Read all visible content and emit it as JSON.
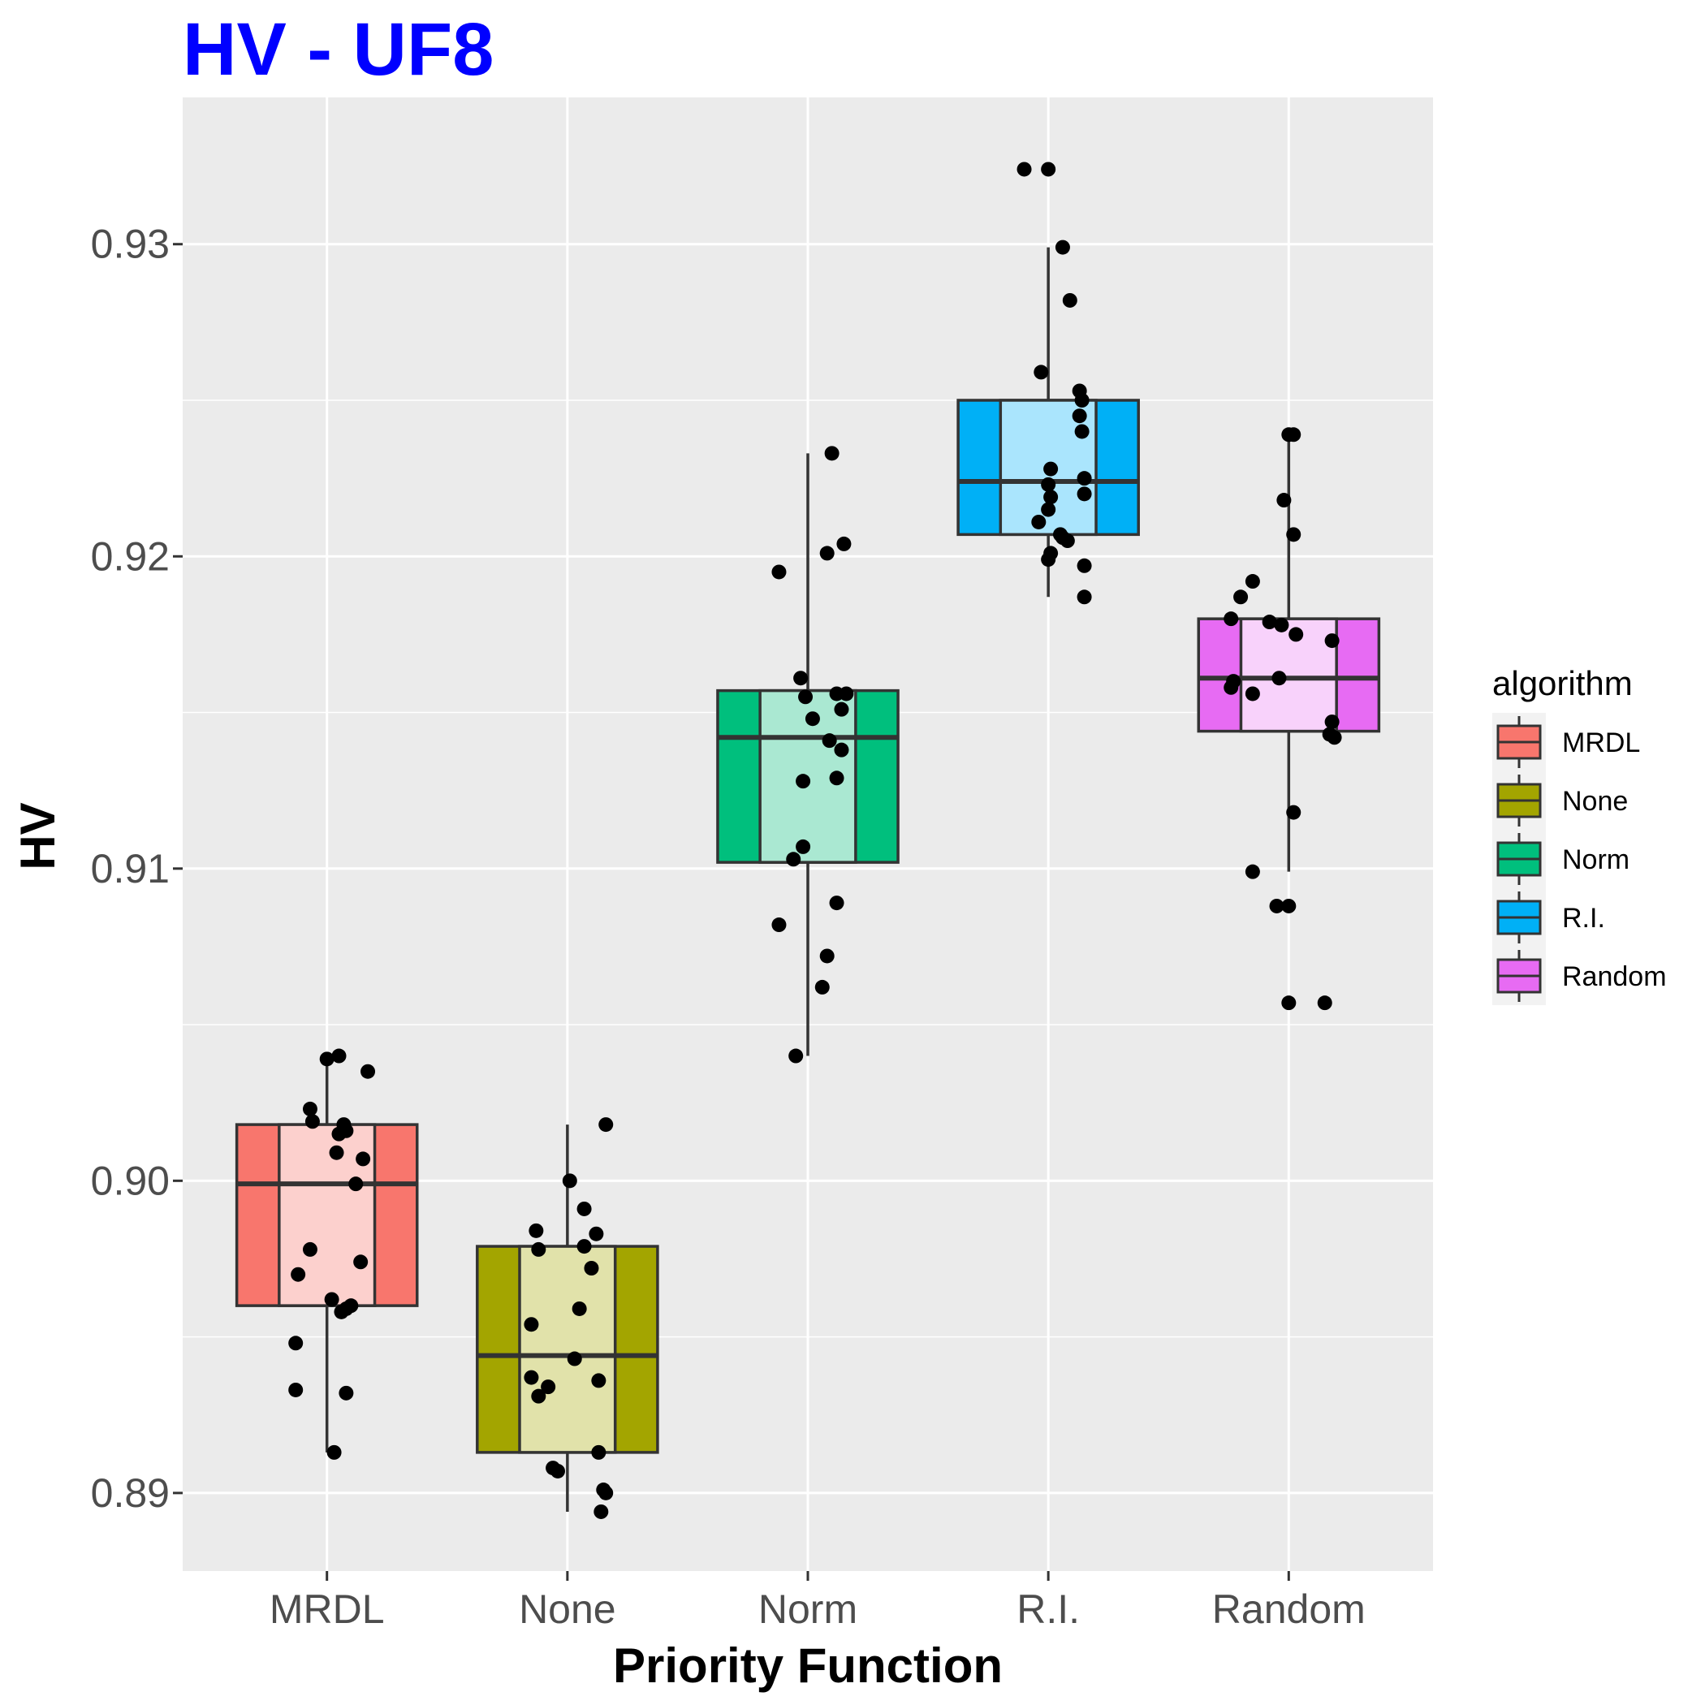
{
  "chart_data": {
    "type": "boxplot",
    "title": "HV - UF8",
    "title_color": "#0000ff",
    "xlabel": "Priority Function",
    "ylabel": "HV",
    "ylim": [
      0.8875,
      0.9347
    ],
    "yticks": [
      0.89,
      0.9,
      0.91,
      0.92,
      0.93
    ],
    "ytick_labels": [
      "0.89",
      "0.90",
      "0.91",
      "0.92",
      "0.93"
    ],
    "grid": true,
    "panel_background": "#ebebeb",
    "categories": [
      "MRDL",
      "None",
      "Norm",
      "R.I.",
      "Random"
    ],
    "legend": {
      "title": "algorithm",
      "position": "right",
      "entries": [
        "MRDL",
        "None",
        "Norm",
        "R.I.",
        "Random"
      ]
    },
    "series": [
      {
        "name": "MRDL",
        "color": "#f8766d",
        "light_color": "#fcd0cd",
        "box": {
          "whisker_low": 0.8913,
          "q1": 0.896,
          "median": 0.8999,
          "q3": 0.9018,
          "whisker_high": 0.904
        },
        "points": [
          [
            0.0,
            0.9039
          ],
          [
            0.05,
            0.904
          ],
          [
            0.17,
            0.9035
          ],
          [
            -0.07,
            0.9023
          ],
          [
            -0.06,
            0.9019
          ],
          [
            0.07,
            0.9018
          ],
          [
            0.05,
            0.9015
          ],
          [
            0.08,
            0.9016
          ],
          [
            0.04,
            0.9009
          ],
          [
            0.15,
            0.9007
          ],
          [
            0.12,
            0.8999
          ],
          [
            -0.07,
            0.8978
          ],
          [
            0.14,
            0.8974
          ],
          [
            -0.12,
            0.897
          ],
          [
            0.02,
            0.8962
          ],
          [
            0.08,
            0.8959
          ],
          [
            0.1,
            0.896
          ],
          [
            0.06,
            0.8958
          ],
          [
            -0.13,
            0.8948
          ],
          [
            -0.13,
            0.8933
          ],
          [
            0.08,
            0.8932
          ],
          [
            0.03,
            0.8913
          ]
        ]
      },
      {
        "name": "None",
        "color": "#a3a500",
        "light_color": "#e1e2aa",
        "box": {
          "whisker_low": 0.8894,
          "q1": 0.8913,
          "median": 0.8944,
          "q3": 0.8979,
          "whisker_high": 0.9018
        },
        "points": [
          [
            0.16,
            0.9018
          ],
          [
            0.01,
            0.9
          ],
          [
            0.07,
            0.8991
          ],
          [
            -0.13,
            0.8984
          ],
          [
            0.12,
            0.8983
          ],
          [
            0.07,
            0.8979
          ],
          [
            -0.12,
            0.8978
          ],
          [
            0.1,
            0.8972
          ],
          [
            0.05,
            0.8959
          ],
          [
            -0.15,
            0.8954
          ],
          [
            0.03,
            0.8943
          ],
          [
            -0.15,
            0.8937
          ],
          [
            0.13,
            0.8936
          ],
          [
            -0.08,
            0.8934
          ],
          [
            -0.12,
            0.8931
          ],
          [
            0.13,
            0.8913
          ],
          [
            -0.06,
            0.8908
          ],
          [
            -0.04,
            0.8907
          ],
          [
            0.15,
            0.8901
          ],
          [
            0.16,
            0.89
          ],
          [
            0.14,
            0.8894
          ]
        ]
      },
      {
        "name": "Norm",
        "color": "#00bf7d",
        "light_color": "#aae8d2",
        "box": {
          "whisker_low": 0.904,
          "q1": 0.9102,
          "median": 0.9142,
          "q3": 0.9157,
          "whisker_high": 0.9233
        },
        "points": [
          [
            0.1,
            0.9233
          ],
          [
            0.15,
            0.9204
          ],
          [
            0.08,
            0.9201
          ],
          [
            -0.12,
            0.9195
          ],
          [
            -0.03,
            0.9161
          ],
          [
            0.12,
            0.9156
          ],
          [
            0.16,
            0.9156
          ],
          [
            -0.01,
            0.9155
          ],
          [
            0.14,
            0.9151
          ],
          [
            0.02,
            0.9148
          ],
          [
            0.09,
            0.9141
          ],
          [
            0.14,
            0.9138
          ],
          [
            -0.02,
            0.9128
          ],
          [
            0.12,
            0.9129
          ],
          [
            -0.02,
            0.9107
          ],
          [
            -0.06,
            0.9103
          ],
          [
            0.12,
            0.9089
          ],
          [
            -0.12,
            0.9082
          ],
          [
            0.08,
            0.9072
          ],
          [
            0.06,
            0.9062
          ],
          [
            -0.05,
            0.904
          ]
        ]
      },
      {
        "name": "R.I.",
        "color": "#00b0f6",
        "light_color": "#aae5fd",
        "box": {
          "whisker_low": 0.9187,
          "q1": 0.9207,
          "median": 0.9224,
          "q3": 0.925,
          "whisker_high": 0.9299
        },
        "points": [
          [
            -0.1,
            0.9324
          ],
          [
            0.0,
            0.9324
          ],
          [
            0.06,
            0.9299
          ],
          [
            0.09,
            0.9282
          ],
          [
            -0.03,
            0.9259
          ],
          [
            0.13,
            0.9253
          ],
          [
            0.14,
            0.925
          ],
          [
            0.13,
            0.9245
          ],
          [
            0.14,
            0.924
          ],
          [
            0.01,
            0.9228
          ],
          [
            0.15,
            0.9225
          ],
          [
            0.0,
            0.9223
          ],
          [
            0.01,
            0.9219
          ],
          [
            0.15,
            0.922
          ],
          [
            0.0,
            0.9215
          ],
          [
            -0.04,
            0.9211
          ],
          [
            0.05,
            0.9207
          ],
          [
            0.08,
            0.9205
          ],
          [
            0.06,
            0.9206
          ],
          [
            0.01,
            0.9201
          ],
          [
            0.0,
            0.9199
          ],
          [
            0.15,
            0.9197
          ],
          [
            0.15,
            0.9187
          ]
        ]
      },
      {
        "name": "Random",
        "color": "#e76bf3",
        "light_color": "#f8d2fb",
        "box": {
          "whisker_low": 0.9099,
          "q1": 0.9144,
          "median": 0.9161,
          "q3": 0.918,
          "whisker_high": 0.9239
        },
        "points": [
          [
            0.0,
            0.9239
          ],
          [
            0.02,
            0.9239
          ],
          [
            -0.02,
            0.9218
          ],
          [
            0.02,
            0.9207
          ],
          [
            -0.15,
            0.9192
          ],
          [
            -0.2,
            0.9187
          ],
          [
            -0.24,
            0.918
          ],
          [
            -0.08,
            0.9179
          ],
          [
            -0.03,
            0.9178
          ],
          [
            0.03,
            0.9175
          ],
          [
            0.18,
            0.9173
          ],
          [
            -0.04,
            0.9161
          ],
          [
            -0.23,
            0.916
          ],
          [
            -0.24,
            0.9158
          ],
          [
            -0.15,
            0.9156
          ],
          [
            0.18,
            0.9147
          ],
          [
            0.17,
            0.9143
          ],
          [
            0.19,
            0.9142
          ],
          [
            0.02,
            0.9118
          ],
          [
            -0.15,
            0.9099
          ],
          [
            -0.05,
            0.9088
          ],
          [
            0.0,
            0.9088
          ],
          [
            0.0,
            0.9057
          ],
          [
            0.15,
            0.9057
          ]
        ]
      }
    ]
  }
}
